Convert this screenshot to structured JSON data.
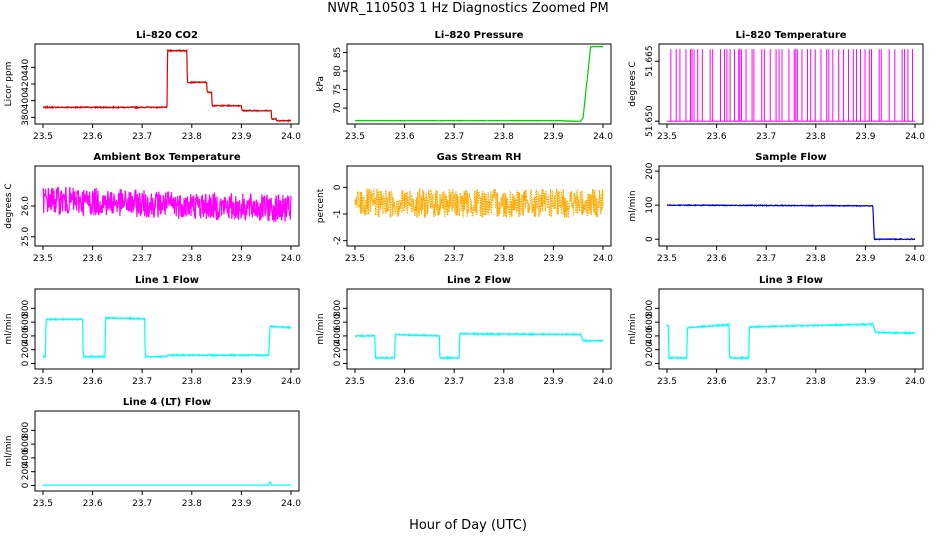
{
  "title": "NWR_110503  1 Hz Diagnostics Zoomed PM",
  "xlabel": "Hour of Day (UTC)",
  "chart_data": [
    {
      "type": "line",
      "title": "Li–820 CO2",
      "ylabel": "Licor ppm",
      "color": "#dd0000",
      "xlim": [
        23.5,
        24.0
      ],
      "ylim": [
        372,
        468
      ],
      "xticks": [
        "23.5",
        "23.6",
        "23.7",
        "23.8",
        "23.9",
        "24.0"
      ],
      "yticks": [
        "380",
        "400",
        "420",
        "440"
      ],
      "noise": 0.6,
      "series": [
        {
          "x": [
            23.5,
            23.75,
            23.751,
            23.79,
            23.791,
            23.83,
            23.831,
            23.84,
            23.841,
            23.9,
            23.901,
            23.96,
            23.961,
            23.97,
            23.971,
            24.0
          ],
          "y": [
            392,
            392,
            460,
            460,
            422,
            422,
            410,
            410,
            394,
            394,
            388,
            388,
            378,
            378,
            376,
            376
          ]
        }
      ]
    },
    {
      "type": "line",
      "title": "Li–820 Pressure",
      "ylabel": "kPa",
      "color": "#00cc00",
      "xlim": [
        23.5,
        24.0
      ],
      "ylim": [
        65.7,
        87.3
      ],
      "xticks": [
        "23.5",
        "23.6",
        "23.7",
        "23.8",
        "23.9",
        "24.0"
      ],
      "yticks": [
        "70",
        "75",
        "80",
        "85"
      ],
      "noise": 0.05,
      "series": [
        {
          "x": [
            23.5,
            23.91,
            23.955,
            23.96,
            23.965,
            23.97,
            23.975,
            23.98,
            24.0
          ],
          "y": [
            66.6,
            66.6,
            66.4,
            67.5,
            74,
            80,
            86.5,
            86.6,
            86.6
          ]
        }
      ]
    },
    {
      "type": "line",
      "title": "Li–820 Temperature",
      "ylabel": "degrees C",
      "color": "#ff00ff",
      "style": "spikes",
      "xlim": [
        23.5,
        24.0
      ],
      "ylim": [
        51.6493,
        51.6693
      ],
      "xticks": [
        "23.5",
        "23.6",
        "23.7",
        "23.8",
        "23.9",
        "24.0"
      ],
      "yticks": [
        "51.650",
        "51.665"
      ],
      "series": [
        {
          "x": [
            23.5,
            24.0
          ],
          "y": [
            51.65,
            51.668
          ]
        }
      ]
    },
    {
      "type": "line",
      "title": "Ambient Box Temperature",
      "ylabel": "degrees C",
      "color": "#ff00ff",
      "xlim": [
        23.5,
        24.0
      ],
      "ylim": [
        24.7,
        27.3
      ],
      "xticks": [
        "23.5",
        "23.6",
        "23.7",
        "23.8",
        "23.9",
        "24.0"
      ],
      "yticks": [
        "25.0",
        "26.0"
      ],
      "noise": 0.45,
      "series": [
        {
          "x": [
            23.5,
            24.0
          ],
          "y": [
            26.2,
            25.9
          ]
        }
      ]
    },
    {
      "type": "line",
      "title": "Gas Stream RH",
      "ylabel": "percent",
      "color": "#ffaa00",
      "dots": true,
      "xlim": [
        23.5,
        24.0
      ],
      "ylim": [
        -2.2,
        0.8
      ],
      "xticks": [
        "23.5",
        "23.6",
        "23.7",
        "23.8",
        "23.9",
        "24.0"
      ],
      "yticks": [
        "-2",
        "-1",
        "0"
      ],
      "noise": 0.55,
      "series": [
        {
          "x": [
            23.5,
            24.0
          ],
          "y": [
            -0.6,
            -0.6
          ]
        }
      ]
    },
    {
      "type": "line",
      "title": "Sample Flow",
      "ylabel": "ml/min",
      "color": "#0000cc",
      "xlim": [
        23.5,
        24.0
      ],
      "ylim": [
        -20,
        215
      ],
      "xticks": [
        "23.5",
        "23.6",
        "23.7",
        "23.8",
        "23.9",
        "24.0"
      ],
      "yticks": [
        "0",
        "100",
        "200"
      ],
      "noise": 1,
      "series": [
        {
          "x": [
            23.5,
            23.915,
            23.918,
            24.0
          ],
          "y": [
            100,
            98,
            0,
            0
          ]
        }
      ]
    },
    {
      "type": "line",
      "title": "Line 1 Flow",
      "ylabel": "ml/min",
      "color": "#00ffff",
      "xlim": [
        23.5,
        24.0
      ],
      "ylim": [
        -80,
        1080
      ],
      "xticks": [
        "23.5",
        "23.6",
        "23.7",
        "23.8",
        "23.9",
        "24.0"
      ],
      "yticks": [
        "0",
        "200",
        "400",
        "600",
        "800"
      ],
      "noise": 8,
      "series": [
        {
          "x": [
            23.5,
            23.505,
            23.506,
            23.58,
            23.581,
            23.625,
            23.626,
            23.705,
            23.706,
            23.75,
            23.751,
            23.955,
            23.958,
            24.0
          ],
          "y": [
            100,
            100,
            640,
            640,
            100,
            100,
            660,
            650,
            100,
            100,
            120,
            120,
            540,
            520
          ]
        }
      ]
    },
    {
      "type": "line",
      "title": "Line 2 Flow",
      "ylabel": "ml/min",
      "color": "#00ffff",
      "xlim": [
        23.5,
        24.0
      ],
      "ylim": [
        -80,
        1080
      ],
      "xticks": [
        "23.5",
        "23.6",
        "23.7",
        "23.8",
        "23.9",
        "24.0"
      ],
      "yticks": [
        "0",
        "200",
        "400",
        "600",
        "800"
      ],
      "noise": 8,
      "series": [
        {
          "x": [
            23.5,
            23.54,
            23.541,
            23.58,
            23.581,
            23.67,
            23.671,
            23.71,
            23.711,
            23.955,
            23.96,
            24.0
          ],
          "y": [
            400,
            400,
            80,
            80,
            420,
            400,
            80,
            80,
            430,
            420,
            330,
            330
          ]
        }
      ]
    },
    {
      "type": "line",
      "title": "Line 3 Flow",
      "ylabel": "ml/min",
      "color": "#00ffff",
      "xlim": [
        23.5,
        24.0
      ],
      "ylim": [
        -80,
        1080
      ],
      "xticks": [
        "23.5",
        "23.6",
        "23.7",
        "23.8",
        "23.9",
        "24.0"
      ],
      "yticks": [
        "0",
        "200",
        "400",
        "600",
        "800"
      ],
      "noise": 8,
      "series": [
        {
          "x": [
            23.5,
            23.503,
            23.504,
            23.54,
            23.541,
            23.625,
            23.626,
            23.665,
            23.666,
            23.915,
            23.92,
            24.0
          ],
          "y": [
            550,
            550,
            80,
            80,
            520,
            560,
            80,
            80,
            530,
            570,
            450,
            440
          ]
        }
      ]
    },
    {
      "type": "line",
      "title": "Line 4 (LT) Flow",
      "ylabel": "ml/min",
      "color": "#00ffff",
      "xlim": [
        23.5,
        24.0
      ],
      "ylim": [
        -80,
        1080
      ],
      "xticks": [
        "23.5",
        "23.6",
        "23.7",
        "23.8",
        "23.9",
        "24.0"
      ],
      "yticks": [
        "0",
        "200",
        "400",
        "600",
        "800"
      ],
      "noise": 0,
      "series": [
        {
          "x": [
            23.5,
            23.955,
            23.957,
            23.959,
            23.961,
            24.0
          ],
          "y": [
            5,
            5,
            50,
            50,
            5,
            5
          ]
        }
      ]
    }
  ]
}
